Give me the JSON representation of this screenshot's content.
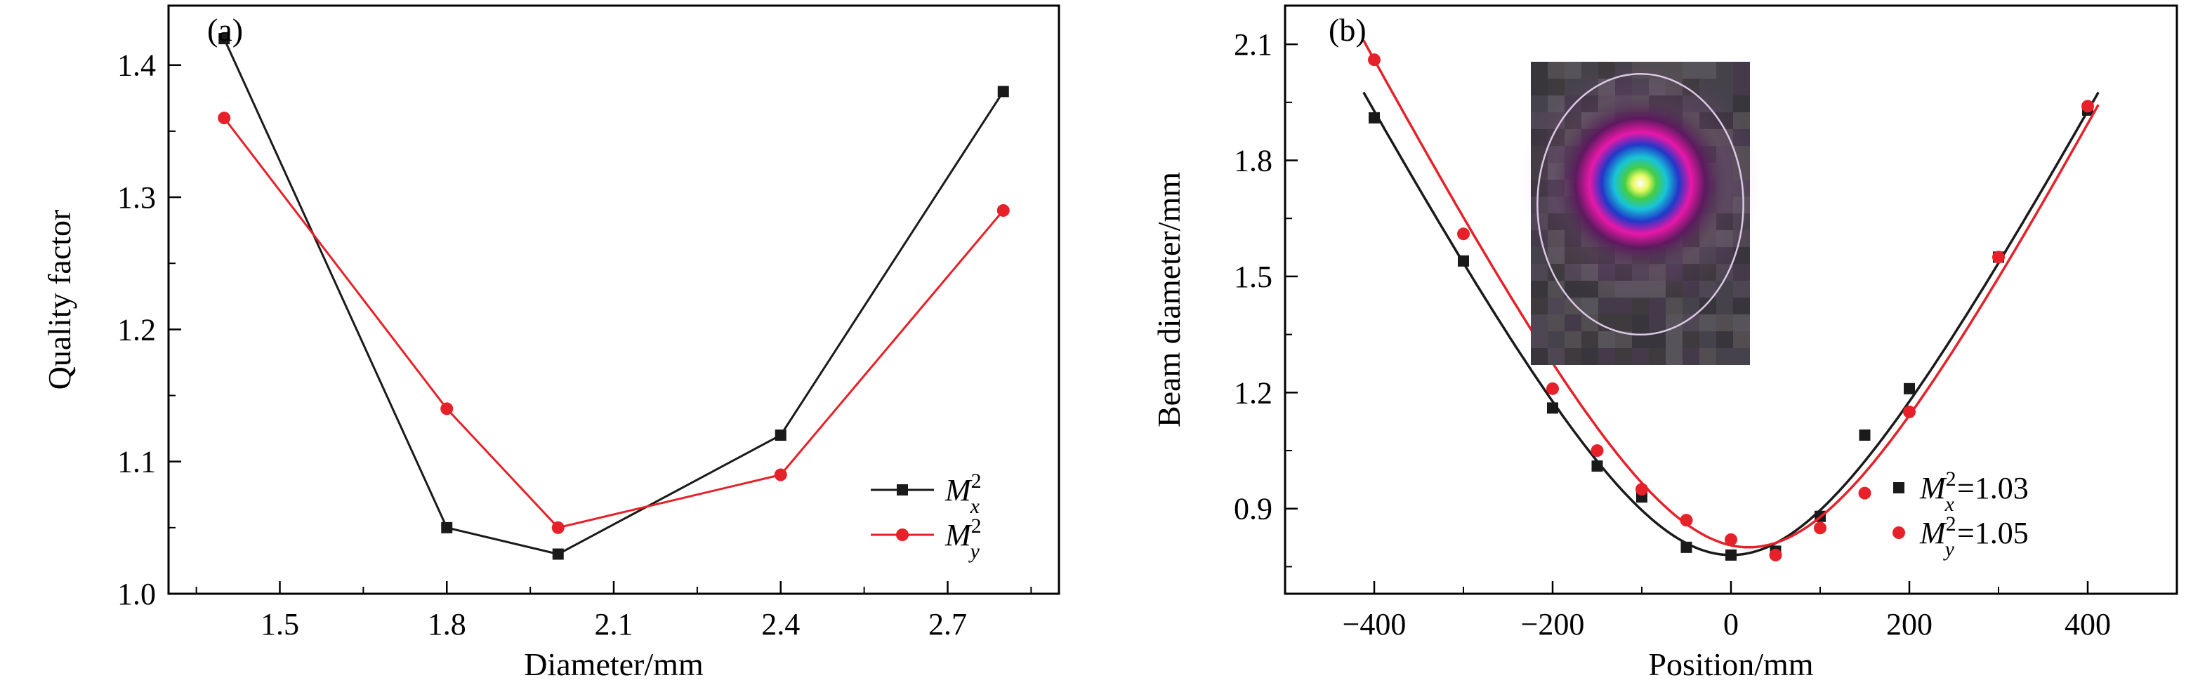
{
  "figure": {
    "background": "#ffffff",
    "text_color": "#000000"
  },
  "chart_data": [
    {
      "type": "line",
      "panel_label": "(a)",
      "xlabel": "Diameter/mm",
      "ylabel": "Quality factor",
      "xlim": [
        1.3,
        2.9
      ],
      "ylim": [
        1.0,
        1.445
      ],
      "xticks": [
        1.5,
        1.8,
        2.1,
        2.4,
        2.7
      ],
      "xtick_labels": [
        "1.5",
        "1.8",
        "2.1",
        "2.4",
        "2.7"
      ],
      "yticks": [
        1.0,
        1.1,
        1.2,
        1.3,
        1.4
      ],
      "ytick_labels": [
        "1.0",
        "1.1",
        "1.2",
        "1.3",
        "1.4"
      ],
      "x_minor_step": 0.15,
      "y_minor_step": 0.05,
      "grid": false,
      "legend_position": "bottom-right",
      "series": [
        {
          "name": "Mx2",
          "legend": {
            "base": "M",
            "sup": "2",
            "sub": "x",
            "suffix": ""
          },
          "color": "#1a1a1a",
          "marker": "square",
          "connect": true,
          "x": [
            1.4,
            1.8,
            2.0,
            2.4,
            2.8
          ],
          "y": [
            1.42,
            1.05,
            1.03,
            1.12,
            1.38
          ]
        },
        {
          "name": "My2",
          "legend": {
            "base": "M",
            "sup": "2",
            "sub": "y",
            "suffix": ""
          },
          "color": "#e62129",
          "marker": "circle",
          "connect": true,
          "x": [
            1.4,
            1.8,
            2.0,
            2.4,
            2.8
          ],
          "y": [
            1.36,
            1.14,
            1.05,
            1.09,
            1.29
          ]
        }
      ]
    },
    {
      "type": "scatter",
      "panel_label": "(b)",
      "xlabel": "Position/mm",
      "ylabel": "Beam diameter/mm",
      "xlim": [
        -500,
        500
      ],
      "ylim": [
        0.68,
        2.2
      ],
      "xticks": [
        -400,
        -200,
        0,
        200,
        400
      ],
      "xtick_labels": [
        "−400",
        "−200",
        "0",
        "200",
        "400"
      ],
      "yticks": [
        0.9,
        1.2,
        1.5,
        1.8,
        2.1
      ],
      "ytick_labels": [
        "0.9",
        "1.2",
        "1.5",
        "1.8",
        "2.1"
      ],
      "x_minor_step": 100,
      "y_minor_step": 0.15,
      "grid": false,
      "legend_position": "bottom-right",
      "series": [
        {
          "name": "Mx2",
          "legend": {
            "base": "M",
            "sup": "2",
            "sub": "x",
            "suffix": "=1.03"
          },
          "color": "#1a1a1a",
          "marker": "square",
          "connect": false,
          "fit": {
            "model": "gaussian-beam-hyperbola",
            "d0": 0.78,
            "z0": 0,
            "zr": 177
          },
          "x": [
            -400,
            -300,
            -200,
            -150,
            -100,
            -50,
            0,
            50,
            100,
            150,
            200,
            300,
            400
          ],
          "y": [
            1.91,
            1.54,
            1.16,
            1.01,
            0.93,
            0.8,
            0.78,
            0.79,
            0.88,
            1.09,
            1.21,
            1.55,
            1.93
          ]
        },
        {
          "name": "My2",
          "legend": {
            "base": "M",
            "sup": "2",
            "sub": "y",
            "suffix": "=1.05"
          },
          "color": "#e62129",
          "marker": "circle",
          "connect": false,
          "fit": {
            "model": "gaussian-beam-hyperbola",
            "d0": 0.8,
            "z0": 20,
            "zr": 177
          },
          "x": [
            -400,
            -300,
            -200,
            -150,
            -100,
            -50,
            0,
            50,
            100,
            150,
            200,
            300,
            400
          ],
          "y": [
            2.06,
            1.61,
            1.21,
            1.05,
            0.95,
            0.87,
            0.82,
            0.78,
            0.85,
            0.94,
            1.15,
            1.55,
            1.94
          ]
        }
      ],
      "inset": {
        "description": "beam-profile-image",
        "background": "#474348",
        "ring_color": "#dcc8e6",
        "colors": [
          "#ffffff",
          "#e8f860",
          "#44cc44",
          "#18c4d8",
          "#2038c8",
          "#e818a8",
          "#5c1a5e"
        ]
      }
    }
  ]
}
